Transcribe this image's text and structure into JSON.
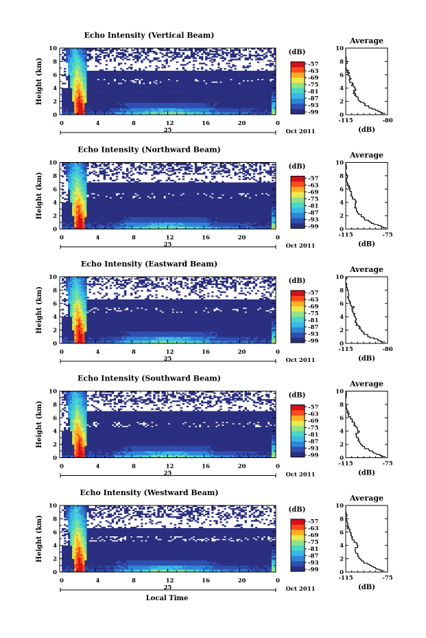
{
  "figure": {
    "date_label": "Oct 2011",
    "day_label": "25",
    "xlabel": "Local Time"
  },
  "colorbar": {
    "unit_label": "(dB)",
    "tick_labels": [
      "-57",
      "-63",
      "-69",
      "-75",
      "-81",
      "-87",
      "-93",
      "-99"
    ],
    "colors": [
      "#2b2f80",
      "#2f4fb0",
      "#2e86d8",
      "#3ab8e8",
      "#4ad6c8",
      "#8fe28a",
      "#e8ea50",
      "#ffb020",
      "#ff4a1a",
      "#d4101a"
    ]
  },
  "chart_data": [
    {
      "type": "heatmap",
      "title": "Echo Intensity (Vertical Beam)",
      "ylabel": "Height (km)",
      "xlim": [
        0,
        24
      ],
      "ylim": [
        0,
        10
      ],
      "x_ticks": [
        "0",
        "4",
        "8",
        "12",
        "16",
        "20",
        "0"
      ],
      "y_ticks": [
        "0",
        "2",
        "4",
        "6",
        "8",
        "10"
      ],
      "value_range_dB": [
        -99,
        -57
      ],
      "profile": {
        "title": "Average",
        "xlabel": "(dB)",
        "x_ticks": [
          "-115",
          "-80"
        ],
        "xlim": [
          -115,
          -80
        ],
        "y_ticks": [
          "0",
          "2",
          "4",
          "6",
          "8",
          "10"
        ],
        "heights_km": [
          0.2,
          0.5,
          1.0,
          1.5,
          2.0,
          2.5,
          3.0,
          3.5,
          4.0,
          4.5,
          5.0,
          5.5,
          6.0,
          6.5,
          7.0,
          8.0,
          9.0,
          10.0
        ],
        "avg_dB": [
          -82,
          -86,
          -93,
          -98,
          -102,
          -105,
          -107,
          -108,
          -107,
          -109,
          -111,
          -111,
          -112,
          -113,
          -114,
          -114,
          -115,
          -115
        ]
      }
    },
    {
      "type": "heatmap",
      "title": "Echo Intensity (Northward Beam)",
      "ylabel": "Height (km)",
      "xlim": [
        0,
        24
      ],
      "ylim": [
        0,
        10
      ],
      "x_ticks": [
        "0",
        "4",
        "8",
        "12",
        "16",
        "20",
        "0"
      ],
      "y_ticks": [
        "0",
        "2",
        "4",
        "6",
        "8",
        "10"
      ],
      "value_range_dB": [
        -99,
        -57
      ],
      "profile": {
        "title": "Average",
        "xlabel": "(dB)",
        "x_ticks": [
          "-115",
          "-75"
        ],
        "xlim": [
          -115,
          -75
        ],
        "y_ticks": [
          "0",
          "2",
          "4",
          "6",
          "8",
          "10"
        ],
        "heights_km": [
          0.2,
          0.5,
          1.0,
          1.5,
          2.0,
          2.5,
          3.0,
          3.5,
          4.0,
          4.5,
          5.0,
          5.5,
          6.0,
          6.5,
          7.0,
          8.0,
          9.0,
          10.0
        ],
        "avg_dB": [
          -76,
          -82,
          -90,
          -96,
          -100,
          -103,
          -105,
          -106,
          -105,
          -107,
          -110,
          -110,
          -111,
          -112,
          -114,
          -114,
          -115,
          -115
        ]
      }
    },
    {
      "type": "heatmap",
      "title": "Echo Intensity (Eastward Beam)",
      "ylabel": "Height (km)",
      "xlim": [
        0,
        24
      ],
      "ylim": [
        0,
        10
      ],
      "x_ticks": [
        "0",
        "4",
        "8",
        "12",
        "16",
        "20",
        "0"
      ],
      "y_ticks": [
        "0",
        "2",
        "4",
        "6",
        "8",
        "10"
      ],
      "value_range_dB": [
        -99,
        -57
      ],
      "profile": {
        "title": "Average",
        "xlabel": "(dB)",
        "x_ticks": [
          "-115",
          "-80"
        ],
        "xlim": [
          -115,
          -80
        ],
        "y_ticks": [
          "0",
          "2",
          "4",
          "6",
          "8",
          "10"
        ],
        "heights_km": [
          0.2,
          0.5,
          1.0,
          1.5,
          2.0,
          2.5,
          3.0,
          3.5,
          4.0,
          4.5,
          5.0,
          5.5,
          6.0,
          6.5,
          7.0,
          8.0,
          9.0,
          10.0
        ],
        "avg_dB": [
          -82,
          -87,
          -94,
          -99,
          -102,
          -104,
          -106,
          -107,
          -106,
          -108,
          -110,
          -109,
          -111,
          -112,
          -113,
          -114,
          -115,
          -115
        ]
      }
    },
    {
      "type": "heatmap",
      "title": "Echo Intensity (Southward Beam)",
      "ylabel": "Height (km)",
      "xlim": [
        0,
        24
      ],
      "ylim": [
        0,
        10
      ],
      "x_ticks": [
        "0",
        "4",
        "8",
        "12",
        "16",
        "20",
        "0"
      ],
      "y_ticks": [
        "0",
        "2",
        "4",
        "6",
        "8",
        "10"
      ],
      "value_range_dB": [
        -99,
        -57
      ],
      "profile": {
        "title": "Average",
        "xlabel": "(dB)",
        "x_ticks": [
          "-115",
          "-75"
        ],
        "xlim": [
          -115,
          -75
        ],
        "y_ticks": [
          "0",
          "2",
          "4",
          "6",
          "8",
          "10"
        ],
        "heights_km": [
          0.2,
          0.5,
          1.0,
          1.5,
          2.0,
          2.5,
          3.0,
          3.5,
          4.0,
          4.5,
          5.0,
          5.5,
          6.0,
          6.5,
          7.0,
          8.0,
          9.0,
          10.0
        ],
        "avg_dB": [
          -77,
          -83,
          -90,
          -96,
          -100,
          -102,
          -104,
          -105,
          -103,
          -104,
          -107,
          -108,
          -111,
          -112,
          -113,
          -114,
          -115,
          -115
        ]
      }
    },
    {
      "type": "heatmap",
      "title": "Echo Intensity (Westward Beam)",
      "ylabel": "Height (km)",
      "xlim": [
        0,
        24
      ],
      "ylim": [
        0,
        10
      ],
      "x_ticks": [
        "0",
        "4",
        "8",
        "12",
        "16",
        "20",
        "0"
      ],
      "y_ticks": [
        "0",
        "2",
        "4",
        "6",
        "8",
        "10"
      ],
      "value_range_dB": [
        -99,
        -57
      ],
      "profile": {
        "title": "Average",
        "xlabel": "(dB)",
        "x_ticks": [
          "-115",
          "-75"
        ],
        "xlim": [
          -115,
          -75
        ],
        "y_ticks": [
          "0",
          "2",
          "4",
          "6",
          "8",
          "10"
        ],
        "heights_km": [
          0.2,
          0.5,
          1.0,
          1.5,
          2.0,
          2.5,
          3.0,
          3.5,
          4.0,
          4.5,
          5.0,
          5.5,
          6.0,
          6.5,
          7.0,
          8.0,
          9.0,
          10.0
        ],
        "avg_dB": [
          -78,
          -84,
          -91,
          -97,
          -101,
          -103,
          -105,
          -106,
          -104,
          -105,
          -108,
          -109,
          -111,
          -112,
          -113,
          -114,
          -115,
          -115
        ]
      }
    }
  ]
}
